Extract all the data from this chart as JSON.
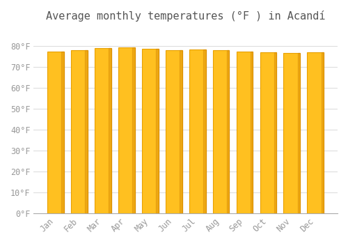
{
  "title": "Average monthly temperatures (°F ) in Acandí",
  "months": [
    "Jan",
    "Feb",
    "Mar",
    "Apr",
    "May",
    "Jun",
    "Jul",
    "Aug",
    "Sep",
    "Oct",
    "Nov",
    "Dec"
  ],
  "values": [
    77.2,
    78.1,
    78.8,
    79.2,
    78.6,
    77.9,
    78.4,
    77.9,
    77.4,
    77.0,
    76.6,
    77.0
  ],
  "bar_color_face": "#FFC020",
  "bar_color_edge": "#E8A000",
  "background_color": "#FFFFFF",
  "plot_bg_color": "#FFFFFF",
  "grid_color": "#DDDDDD",
  "ylim": [
    0,
    88
  ],
  "yticks": [
    0,
    10,
    20,
    30,
    40,
    50,
    60,
    70,
    80
  ],
  "title_fontsize": 11,
  "tick_fontsize": 8.5,
  "tick_color": "#999999",
  "title_color": "#555555"
}
